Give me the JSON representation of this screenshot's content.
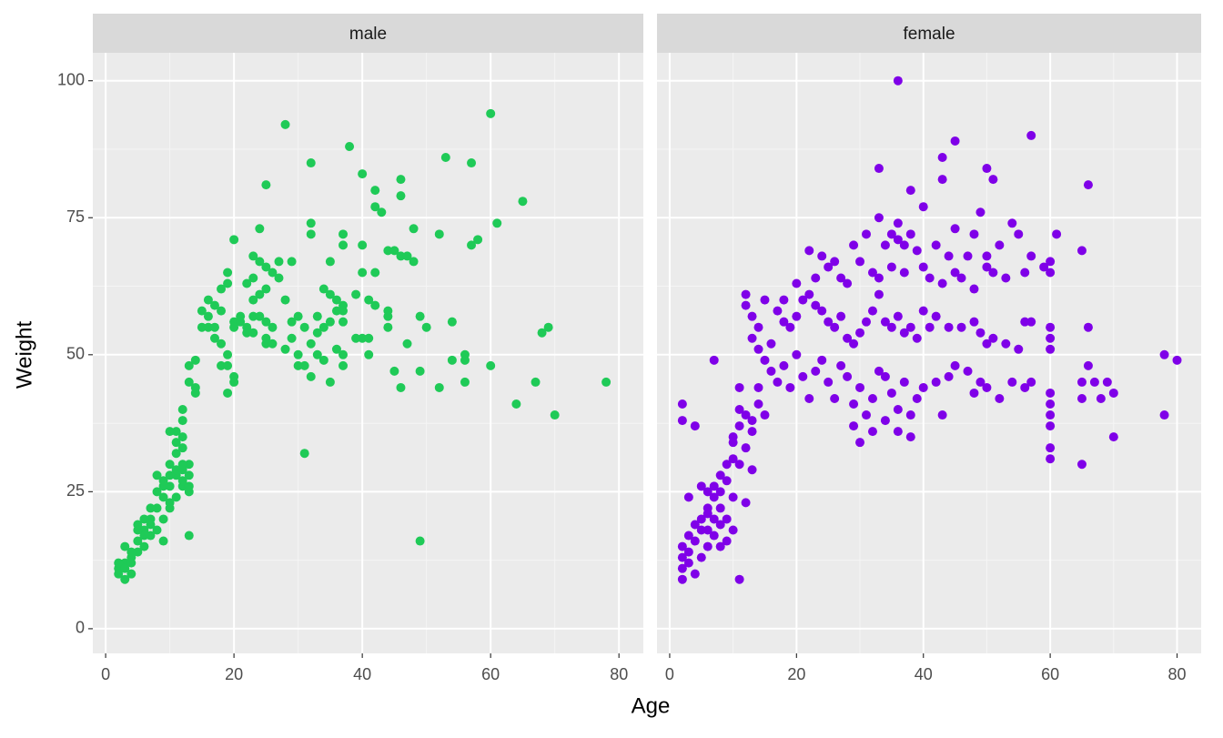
{
  "chart_data": {
    "type": "scatter",
    "x_label": "Age",
    "y_label": "Weight",
    "xlim": [
      -2,
      83.8
    ],
    "ylim": [
      -4.5,
      105.1
    ],
    "xticks": [
      0,
      20,
      40,
      60,
      80
    ],
    "yticks": [
      0,
      25,
      50,
      75,
      100
    ],
    "grid": true,
    "facets": [
      {
        "name": "male",
        "color": "#1fca57",
        "x": [
          28,
          60,
          38,
          53,
          32,
          57,
          40,
          46,
          25,
          46,
          42,
          65,
          42,
          43,
          61,
          32,
          58,
          24,
          20,
          57,
          52,
          48,
          37,
          37,
          44,
          40,
          45,
          46,
          47,
          48,
          32,
          35,
          27,
          29,
          23,
          24,
          25,
          26,
          19,
          19,
          23,
          25,
          22,
          18,
          16,
          17,
          18,
          34,
          35,
          36,
          37,
          41,
          42,
          44,
          30,
          29,
          31,
          33,
          34,
          37,
          37,
          20,
          21,
          22,
          23,
          24,
          25,
          26,
          23,
          25,
          25,
          15,
          16,
          17,
          18,
          19,
          18,
          19,
          20,
          20,
          19,
          22,
          29,
          30,
          30,
          32,
          33,
          34,
          32,
          35,
          37,
          37,
          40,
          41,
          41,
          44,
          44,
          45,
          46,
          47,
          49,
          49,
          50,
          52,
          54,
          54,
          56,
          56,
          56,
          60,
          64,
          67,
          68,
          69,
          70,
          78,
          31,
          49,
          13,
          13,
          14,
          14,
          13,
          12,
          12,
          11,
          10,
          11,
          12,
          13,
          13,
          12,
          11,
          10,
          9,
          8,
          7,
          6,
          5,
          4,
          3,
          2,
          2,
          3,
          4,
          5,
          6,
          7,
          8,
          9,
          10,
          11,
          12,
          8,
          9,
          7,
          6,
          5,
          4,
          3,
          2,
          10,
          11,
          12,
          13,
          9,
          8,
          12,
          10,
          11,
          6,
          5,
          7,
          3,
          4,
          9,
          12,
          13,
          10,
          14,
          15,
          16,
          20,
          21,
          17,
          35,
          36,
          39,
          40,
          42,
          39,
          36,
          27,
          24,
          33,
          31,
          28,
          28,
          26,
          23
        ],
        "values": [
          92,
          94,
          88,
          86,
          85,
          85,
          83,
          82,
          81,
          79,
          80,
          78,
          77,
          76,
          74,
          74,
          71,
          73,
          71,
          70,
          72,
          73,
          72,
          70,
          69,
          70,
          69,
          68,
          68,
          67,
          72,
          67,
          67,
          67,
          68,
          67,
          66,
          65,
          65,
          63,
          64,
          62,
          63,
          62,
          60,
          59,
          58,
          62,
          61,
          60,
          59,
          60,
          59,
          58,
          57,
          56,
          55,
          54,
          55,
          56,
          58,
          56,
          56,
          55,
          57,
          57,
          56,
          55,
          54,
          53,
          52,
          55,
          57,
          53,
          52,
          50,
          48,
          48,
          46,
          45,
          43,
          54,
          53,
          50,
          48,
          52,
          50,
          49,
          46,
          45,
          50,
          48,
          53,
          50,
          53,
          55,
          57,
          47,
          44,
          52,
          47,
          57,
          55,
          44,
          56,
          49,
          50,
          49,
          45,
          48,
          41,
          45,
          54,
          55,
          39,
          45,
          32,
          16,
          17,
          48,
          44,
          43,
          45,
          40,
          38,
          36,
          36,
          34,
          33,
          30,
          28,
          26,
          24,
          22,
          20,
          18,
          17,
          15,
          14,
          13,
          12,
          11,
          10,
          9,
          14,
          16,
          18,
          20,
          22,
          24,
          26,
          28,
          30,
          28,
          16,
          22,
          20,
          19,
          12,
          15,
          12,
          30,
          32,
          35,
          25,
          26,
          25,
          27,
          23,
          29,
          17,
          18,
          19,
          11,
          10,
          27,
          29,
          26,
          28,
          49,
          58,
          55,
          55,
          57,
          55,
          56,
          58,
          53,
          65,
          65,
          61,
          51,
          64,
          61,
          57,
          48,
          51,
          60,
          52,
          60
        ]
      },
      {
        "name": "female",
        "color": "#7f00e8",
        "x": [
          36,
          57,
          45,
          33,
          43,
          50,
          51,
          66,
          38,
          43,
          40,
          49,
          33,
          36,
          54,
          61,
          45,
          38,
          22,
          24,
          26,
          29,
          31,
          35,
          34,
          36,
          37,
          39,
          42,
          44,
          47,
          48,
          50,
          52,
          55,
          57,
          60,
          59,
          60,
          65,
          25,
          27,
          28,
          30,
          32,
          33,
          35,
          37,
          40,
          41,
          43,
          45,
          46,
          48,
          50,
          51,
          53,
          56,
          12,
          12,
          15,
          17,
          18,
          19,
          20,
          21,
          22,
          23,
          24,
          25,
          26,
          27,
          28,
          29,
          30,
          31,
          32,
          33,
          34,
          35,
          36,
          37,
          38,
          39,
          40,
          41,
          42,
          44,
          46,
          48,
          49,
          50,
          51,
          53,
          55,
          56,
          57,
          60,
          60,
          60,
          66,
          13,
          14,
          15,
          16,
          17,
          18,
          19,
          20,
          21,
          22,
          23,
          24,
          25,
          26,
          27,
          28,
          29,
          30,
          31,
          32,
          33,
          34,
          35,
          36,
          37,
          38,
          39,
          40,
          42,
          43,
          44,
          45,
          47,
          48,
          49,
          50,
          52,
          54,
          56,
          57,
          60,
          60,
          60,
          60,
          60,
          60,
          65,
          65,
          65,
          66,
          67,
          68,
          69,
          70,
          70,
          78,
          78,
          80,
          29,
          30,
          32,
          34,
          36,
          38,
          7,
          2,
          2,
          4,
          11,
          2,
          2,
          2,
          2,
          3,
          3,
          4,
          4,
          5,
          5,
          5,
          6,
          6,
          6,
          7,
          7,
          7,
          8,
          8,
          8,
          9,
          9,
          10,
          10,
          10,
          11,
          11,
          11,
          12,
          12,
          13,
          13,
          14,
          14,
          15,
          9,
          8,
          10,
          3,
          4,
          3,
          5,
          6,
          12,
          13,
          10,
          11,
          14,
          13,
          16,
          18,
          20,
          23,
          9,
          8,
          7,
          6
        ],
        "values": [
          100,
          90,
          89,
          84,
          86,
          84,
          82,
          81,
          80,
          82,
          77,
          76,
          75,
          74,
          74,
          72,
          73,
          72,
          69,
          68,
          67,
          70,
          72,
          72,
          70,
          71,
          70,
          69,
          70,
          68,
          68,
          72,
          68,
          70,
          72,
          68,
          67,
          66,
          65,
          69,
          66,
          64,
          63,
          67,
          65,
          64,
          66,
          65,
          66,
          64,
          63,
          65,
          64,
          62,
          66,
          65,
          64,
          65,
          61,
          59,
          60,
          58,
          56,
          55,
          57,
          60,
          61,
          59,
          58,
          56,
          55,
          57,
          53,
          52,
          54,
          56,
          58,
          61,
          56,
          55,
          57,
          54,
          55,
          53,
          58,
          55,
          57,
          55,
          55,
          56,
          54,
          52,
          53,
          52,
          51,
          56,
          56,
          55,
          53,
          51,
          55,
          53,
          51,
          49,
          47,
          45,
          48,
          44,
          50,
          46,
          42,
          47,
          49,
          45,
          42,
          48,
          46,
          41,
          44,
          39,
          42,
          47,
          46,
          43,
          40,
          45,
          39,
          42,
          44,
          45,
          39,
          46,
          48,
          47,
          43,
          45,
          44,
          42,
          45,
          44,
          45,
          43,
          41,
          39,
          37,
          33,
          31,
          45,
          42,
          30,
          48,
          45,
          42,
          45,
          43,
          35,
          50,
          39,
          49,
          37,
          34,
          36,
          38,
          36,
          35,
          49,
          41,
          38,
          37,
          9,
          15,
          13,
          11,
          9,
          12,
          14,
          10,
          16,
          13,
          18,
          20,
          15,
          21,
          22,
          17,
          24,
          26,
          19,
          25,
          28,
          20,
          27,
          24,
          31,
          35,
          30,
          37,
          40,
          33,
          39,
          36,
          38,
          41,
          44,
          39,
          16,
          15,
          18,
          17,
          19,
          24,
          26,
          25,
          23,
          29,
          34,
          44,
          55,
          57,
          52,
          60,
          63,
          64,
          30,
          22,
          20,
          18
        ]
      }
    ]
  }
}
